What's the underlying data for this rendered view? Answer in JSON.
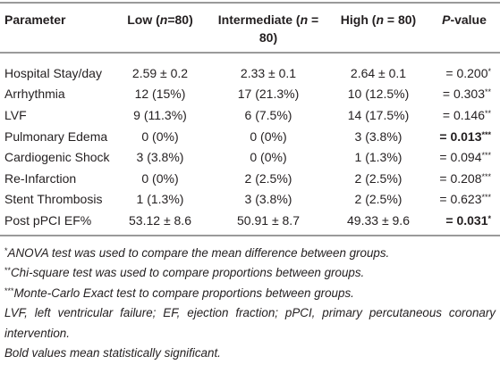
{
  "table": {
    "columns": [
      [
        {
          "text": "Parameter"
        }
      ],
      [
        {
          "text": "Low ("
        },
        {
          "text": "n",
          "italic": true
        },
        {
          "text": "=80)"
        }
      ],
      [
        {
          "text": "Intermediate ("
        },
        {
          "text": "n",
          "italic": true
        },
        {
          "text": " = 80)"
        }
      ],
      [
        {
          "text": "High ("
        },
        {
          "text": "n",
          "italic": true
        },
        {
          "text": " = 80)"
        }
      ],
      [
        {
          "text": "P",
          "italic": true
        },
        {
          "text": "-value"
        }
      ]
    ],
    "rows": [
      {
        "cells": [
          "Hospital Stay/day",
          "2.59 ± 0.2",
          "2.33 ± 0.1",
          "2.64 ± 0.1"
        ],
        "p_value": {
          "text": "= 0.200",
          "mark": "*",
          "bold": false
        }
      },
      {
        "cells": [
          "Arrhythmia",
          "12 (15%)",
          "17 (21.3%)",
          "10 (12.5%)"
        ],
        "p_value": {
          "text": "= 0.303",
          "mark": "**",
          "bold": false
        }
      },
      {
        "cells": [
          "LVF",
          "9 (11.3%)",
          "6 (7.5%)",
          "14 (17.5%)"
        ],
        "p_value": {
          "text": "= 0.146",
          "mark": "**",
          "bold": false
        }
      },
      {
        "cells": [
          "Pulmonary Edema",
          "0 (0%)",
          "0 (0%)",
          "3 (3.8%)"
        ],
        "p_value": {
          "text": "= 0.013",
          "mark": "***",
          "bold": true
        }
      },
      {
        "cells": [
          "Cardiogenic Shock",
          "3 (3.8%)",
          "0 (0%)",
          "1 (1.3%)"
        ],
        "p_value": {
          "text": "= 0.094",
          "mark": "***",
          "bold": false
        }
      },
      {
        "cells": [
          "Re-Infarction",
          "0 (0%)",
          "2 (2.5%)",
          "2 (2.5%)"
        ],
        "p_value": {
          "text": "= 0.208",
          "mark": "***",
          "bold": false
        }
      },
      {
        "cells": [
          "Stent Thrombosis",
          "1 (1.3%)",
          "3 (3.8%)",
          "2 (2.5%)"
        ],
        "p_value": {
          "text": "= 0.623",
          "mark": "***",
          "bold": false
        }
      },
      {
        "cells": [
          "Post pPCI EF%",
          "53.12 ± 8.6",
          "50.91 ± 8.7",
          "49.33 ± 9.6"
        ],
        "p_value": {
          "text": "= 0.031",
          "mark": "*",
          "bold": true
        }
      }
    ],
    "footnotes": [
      {
        "mark": "*",
        "text": "ANOVA test was used to compare the mean difference between groups."
      },
      {
        "mark": "**",
        "text": "Chi-square test was used to compare proportions between groups."
      },
      {
        "mark": "***",
        "text": "Monte-Carlo Exact test to compare proportions between groups."
      },
      {
        "text": "LVF, left ventricular failure; EF, ejection fraction; pPCI, primary percutaneous coronary intervention."
      },
      {
        "text": "Bold values mean statistically significant."
      }
    ]
  }
}
